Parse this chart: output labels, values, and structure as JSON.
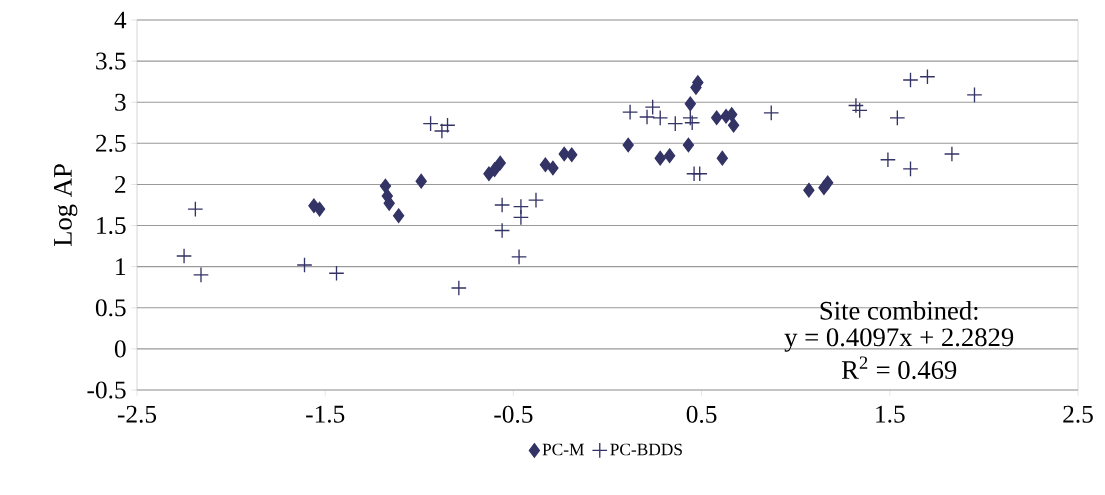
{
  "chart_data": {
    "type": "scatter",
    "ylabel": "Log AP",
    "xlim": [
      -2.5,
      2.5
    ],
    "xticks": [
      -2.5,
      -1.5,
      -0.5,
      0.5,
      1.5,
      2.5
    ],
    "ylim": [
      -0.5,
      4
    ],
    "yticks": [
      -0.5,
      0,
      0.5,
      1,
      1.5,
      2,
      2.5,
      3,
      3.5,
      4
    ],
    "grid": "y",
    "legend": "bottom",
    "annotations": [
      "Site combined:",
      "y = 0.4097x + 2.2829",
      "R$^{2}$ = 0.469"
    ],
    "series": [
      {
        "name": "PC-M",
        "color": "#333366",
        "marker": "diamond",
        "x": [
          -1.56,
          -1.53,
          -1.18,
          -1.17,
          -1.16,
          -1.11,
          -0.99,
          -0.63,
          -0.6,
          -0.57,
          -0.33,
          -0.29,
          -0.23,
          -0.19,
          0.11,
          0.28,
          0.33,
          0.43,
          0.44,
          0.47,
          0.48,
          0.58,
          0.63,
          0.67,
          0.66,
          0.61,
          1.07,
          1.15,
          1.17
        ],
        "values": [
          1.74,
          1.7,
          1.98,
          1.86,
          1.77,
          1.62,
          2.04,
          2.13,
          2.18,
          2.26,
          2.24,
          2.2,
          2.37,
          2.36,
          2.48,
          2.32,
          2.35,
          2.48,
          2.98,
          3.18,
          3.24,
          2.81,
          2.83,
          2.72,
          2.85,
          2.32,
          1.93,
          1.96,
          2.02
        ]
      },
      {
        "name": "PC-BDDS",
        "color": "#333366",
        "marker": "cross",
        "x": [
          -2.25,
          -2.19,
          -2.16,
          -1.61,
          -1.44,
          -0.94,
          -0.88,
          -0.85,
          -0.79,
          -0.56,
          -0.56,
          -0.47,
          -0.46,
          -0.46,
          -0.38,
          0.12,
          0.21,
          0.24,
          0.28,
          0.36,
          0.44,
          0.45,
          0.46,
          0.49,
          0.87,
          1.32,
          1.34,
          1.49,
          1.54,
          1.61,
          1.61,
          1.7,
          1.83,
          1.95
        ],
        "values": [
          1.13,
          1.7,
          0.9,
          1.02,
          0.92,
          2.74,
          2.65,
          2.72,
          0.74,
          1.44,
          1.75,
          1.12,
          1.73,
          1.6,
          1.81,
          2.88,
          2.82,
          2.94,
          2.81,
          2.74,
          2.81,
          2.75,
          2.13,
          2.13,
          2.87,
          2.96,
          2.9,
          2.3,
          2.81,
          2.19,
          3.27,
          3.31,
          2.37,
          3.09
        ]
      }
    ]
  }
}
